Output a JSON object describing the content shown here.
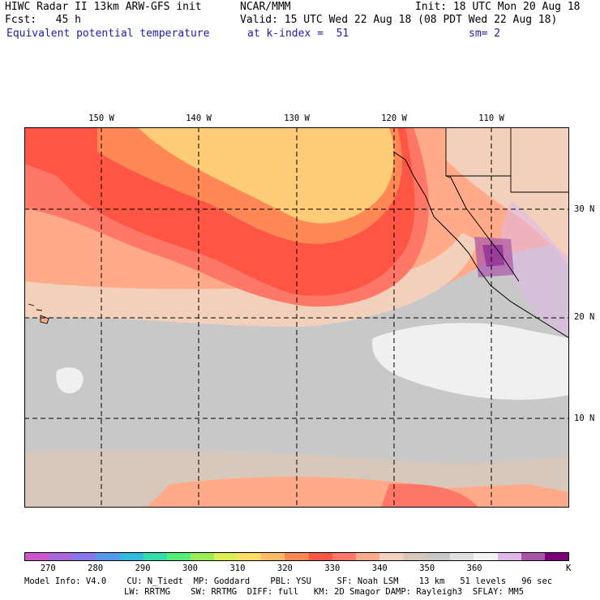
{
  "header": {
    "model_line": "HIWC Radar II 13km ARW-GFS init",
    "org": "NCAR/MMM",
    "init": "Init: 18 UTC Mon 20 Aug 18",
    "fcst": "Fcst:   45 h",
    "valid": "Valid: 15 UTC Wed 22 Aug 18 (08 PDT Wed 22 Aug 18)",
    "field": "Equivalent potential temperature",
    "level": "at k-index =  51",
    "smooth": "sm= 2"
  },
  "map": {
    "lon_labels": [
      "150 W",
      "140 W",
      "130 W",
      "120 W",
      "110 W"
    ],
    "lat_labels": [
      "30 N",
      "20 N",
      "10 N"
    ]
  },
  "colorbar": {
    "colors": [
      "#cc55cc",
      "#aa66dd",
      "#8877ee",
      "#5599ee",
      "#33bbdd",
      "#33ddaa",
      "#55ee77",
      "#99ee55",
      "#ddee55",
      "#ffdd66",
      "#ffbb66",
      "#ff8855",
      "#ff5544",
      "#ff7766",
      "#ffaa88",
      "#f2d0bb",
      "#d8c8bc",
      "#c8c8c8",
      "#e0e0e0",
      "#f2f2f2",
      "#e0b8e8",
      "#aa55aa",
      "#7a007a"
    ],
    "tick_labels": [
      "270",
      "280",
      "290",
      "300",
      "310",
      "320",
      "330",
      "340",
      "350",
      "360"
    ],
    "units": "K"
  },
  "footer": {
    "line1": "Model Info: V4.0    CU: N_Tiedt  MP: Goddard    PBL: YSU     SF: Noah LSM    13 km   51 levels   96 sec",
    "line2": "LW: RRTMG    SW: RRTMG  DIFF: full   KM: 2D Smagor DAMP: Rayleigh3  SFLAY: MM5"
  }
}
